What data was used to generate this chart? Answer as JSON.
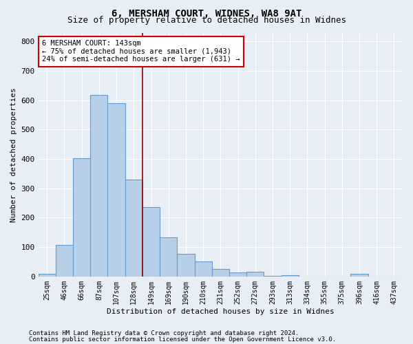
{
  "title1": "6, MERSHAM COURT, WIDNES, WA8 9AT",
  "title2": "Size of property relative to detached houses in Widnes",
  "xlabel": "Distribution of detached houses by size in Widnes",
  "ylabel": "Number of detached properties",
  "categories": [
    "25sqm",
    "46sqm",
    "66sqm",
    "87sqm",
    "107sqm",
    "128sqm",
    "149sqm",
    "169sqm",
    "190sqm",
    "210sqm",
    "231sqm",
    "252sqm",
    "272sqm",
    "293sqm",
    "313sqm",
    "334sqm",
    "355sqm",
    "375sqm",
    "396sqm",
    "416sqm",
    "437sqm"
  ],
  "values": [
    8,
    107,
    403,
    617,
    591,
    330,
    237,
    133,
    78,
    51,
    25,
    13,
    16,
    3,
    5,
    0,
    0,
    0,
    8,
    0,
    0
  ],
  "bar_color": "#b8cfe8",
  "bar_edge_color": "#6699cc",
  "vline_x_idx": 5.5,
  "vline_color": "#8b0000",
  "annotation_line1": "6 MERSHAM COURT: 143sqm",
  "annotation_line2": "← 75% of detached houses are smaller (1,943)",
  "annotation_line3": "24% of semi-detached houses are larger (631) →",
  "annotation_box_color": "white",
  "annotation_box_edge_color": "#cc0000",
  "ylim": [
    0,
    830
  ],
  "yticks": [
    0,
    100,
    200,
    300,
    400,
    500,
    600,
    700,
    800
  ],
  "footer1": "Contains HM Land Registry data © Crown copyright and database right 2024.",
  "footer2": "Contains public sector information licensed under the Open Government Licence v3.0.",
  "bg_color": "#e8eef5",
  "plot_bg_color": "#e8eef5",
  "grid_color": "white",
  "title1_fontsize": 10,
  "title2_fontsize": 9,
  "tick_fontsize": 7,
  "ylabel_fontsize": 8,
  "xlabel_fontsize": 8,
  "footer_fontsize": 6.5
}
